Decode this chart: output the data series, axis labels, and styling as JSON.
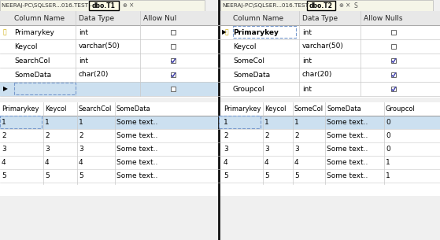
{
  "bg_color": "#f0f0f0",
  "white": "#ffffff",
  "tab_bg": "#fffde7",
  "tab_border": "#000000",
  "header_bg": "#e8e8e8",
  "selected_row_bg": "#cce0f0",
  "divider_color": "#1a1a1a",
  "text_dark": "#000000",
  "text_gray": "#444444",
  "grid_color": "#c8c8c8",
  "check_color": "#3a3aaa",
  "tab_prefix_left": "NEERAJ-PC\\SQLSER...016.TEST -",
  "tab_prefix_right": "NEERAJ-PC\\SQLSER...016.TEST",
  "t1_tab": "dbo.T1",
  "t2_tab": "dbo.T2",
  "schema_col_names": [
    "Column Name",
    "Data Type",
    "Allow Nul"
  ],
  "schema_col_names_r": [
    "Column Name",
    "Data Type",
    "Allow Nulls"
  ],
  "t1_schema": [
    {
      "name": "Primarykey",
      "type": "int",
      "null": false,
      "pk": true,
      "new": false
    },
    {
      "name": "Keycol",
      "type": "varchar(50)",
      "null": false,
      "pk": false,
      "new": false
    },
    {
      "name": "SearchCol",
      "type": "int",
      "null": true,
      "pk": false,
      "new": false
    },
    {
      "name": "SomeData",
      "type": "char(20)",
      "null": true,
      "pk": false,
      "new": false
    },
    {
      "name": "",
      "type": "",
      "null": false,
      "pk": false,
      "new": true
    }
  ],
  "t2_schema": [
    {
      "name": "Primarykey",
      "type": "int",
      "null": false,
      "pk": true,
      "sel": true
    },
    {
      "name": "Keycol",
      "type": "varchar(50)",
      "null": false,
      "pk": false,
      "sel": false
    },
    {
      "name": "SomeCol",
      "type": "int",
      "null": true,
      "pk": false,
      "sel": false
    },
    {
      "name": "SomeData",
      "type": "char(20)",
      "null": true,
      "pk": false,
      "sel": false
    },
    {
      "name": "Groupcol",
      "type": "int",
      "null": true,
      "pk": false,
      "sel": false
    }
  ],
  "t1_data_cols": [
    "Primarykey",
    "Keycol",
    "SearchCol",
    "SomeData"
  ],
  "t1_data_x": [
    2,
    57,
    100,
    148
  ],
  "t1_data": [
    [
      "1",
      "1",
      "1",
      "Some text.."
    ],
    [
      "2",
      "2",
      "2",
      "Some text.."
    ],
    [
      "3",
      "3",
      "3",
      "Some text.."
    ],
    [
      "4",
      "4",
      "4",
      "Some text.."
    ],
    [
      "5",
      "5",
      "5",
      "Some text.."
    ]
  ],
  "t2_data_cols": [
    "Primarykey",
    "Keycol",
    "SomeCol",
    "SomeData",
    "Groupcol"
  ],
  "t2_data_x": [
    284,
    336,
    374,
    415,
    490
  ],
  "t2_data": [
    [
      "1",
      "1",
      "1",
      "Some text..",
      "0"
    ],
    [
      "2",
      "2",
      "2",
      "Some text..",
      "0"
    ],
    [
      "3",
      "3",
      "3",
      "Some text..",
      "0"
    ],
    [
      "4",
      "4",
      "4",
      "Some text..",
      "1"
    ],
    [
      "5",
      "5",
      "5",
      "Some text..",
      "1"
    ]
  ]
}
